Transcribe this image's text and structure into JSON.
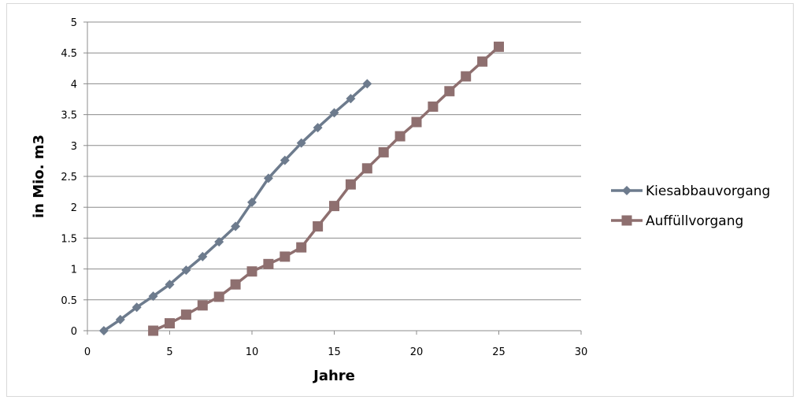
{
  "chart_data": {
    "type": "line",
    "title": "",
    "xlabel": "Jahre",
    "ylabel": "in Mio. m3",
    "xlim": [
      0,
      30
    ],
    "ylim": [
      0,
      5
    ],
    "xticks": [
      0,
      5,
      10,
      15,
      20,
      25,
      30
    ],
    "yticks": [
      0,
      0.5,
      1,
      1.5,
      2,
      2.5,
      3,
      3.5,
      4,
      4.5,
      5
    ],
    "grid": "horizontal",
    "legend_position": "right",
    "series": [
      {
        "name": "Kiesabbauvorgang",
        "color": "#6d7b8d",
        "marker": "diamond",
        "x": [
          1,
          2,
          3,
          4,
          5,
          6,
          7,
          8,
          9,
          10,
          11,
          12,
          13,
          14,
          15,
          16,
          17
        ],
        "y": [
          0,
          0.18,
          0.38,
          0.56,
          0.75,
          0.98,
          1.2,
          1.44,
          1.69,
          2.08,
          2.47,
          2.76,
          3.04,
          3.29,
          3.53,
          3.76,
          4.0
        ]
      },
      {
        "name": "Auffüllvorgang",
        "color": "#8e6f6f",
        "marker": "square",
        "x": [
          4,
          5,
          6,
          7,
          8,
          9,
          10,
          11,
          12,
          13,
          14,
          15,
          16,
          17,
          18,
          19,
          20,
          21,
          22,
          23,
          24,
          25
        ],
        "y": [
          0,
          0.12,
          0.26,
          0.41,
          0.55,
          0.75,
          0.96,
          1.08,
          1.2,
          1.35,
          1.69,
          2.02,
          2.37,
          2.63,
          2.89,
          3.15,
          3.38,
          3.63,
          3.88,
          4.12,
          4.36,
          4.6
        ]
      }
    ]
  }
}
